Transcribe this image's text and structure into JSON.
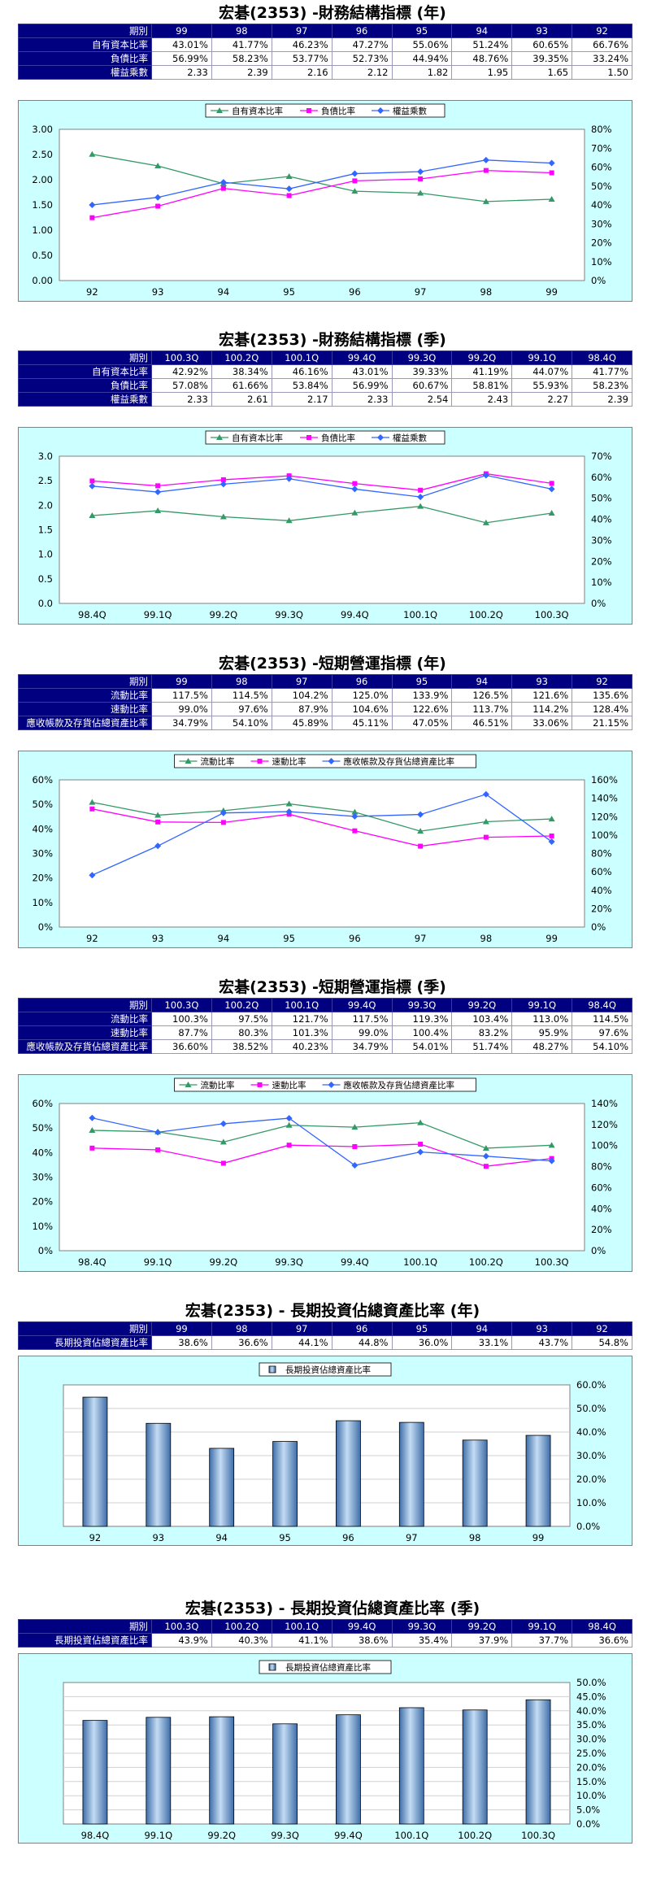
{
  "sections": [
    {
      "title": "宏碁(2353) -財務結構指標 (年)",
      "table": {
        "header_label": "期別",
        "columns": [
          "99",
          "98",
          "97",
          "96",
          "95",
          "94",
          "93",
          "92"
        ],
        "rows": [
          {
            "label": "自有資本比率",
            "values": [
              "43.01%",
              "41.77%",
              "46.23%",
              "47.27%",
              "55.06%",
              "51.24%",
              "60.65%",
              "66.76%"
            ]
          },
          {
            "label": "負債比率",
            "values": [
              "56.99%",
              "58.23%",
              "53.77%",
              "52.73%",
              "44.94%",
              "48.76%",
              "39.35%",
              "33.24%"
            ]
          },
          {
            "label": "權益乘數",
            "values": [
              "2.33",
              "2.39",
              "2.16",
              "2.12",
              "1.82",
              "1.95",
              "1.65",
              "1.50"
            ]
          }
        ]
      }
    },
    {
      "title": "宏碁(2353) -財務結構指標 (季)",
      "table": {
        "header_label": "期別",
        "columns": [
          "100.3Q",
          "100.2Q",
          "100.1Q",
          "99.4Q",
          "99.3Q",
          "99.2Q",
          "99.1Q",
          "98.4Q"
        ],
        "rows": [
          {
            "label": "自有資本比率",
            "values": [
              "42.92%",
              "38.34%",
              "46.16%",
              "43.01%",
              "39.33%",
              "41.19%",
              "44.07%",
              "41.77%"
            ]
          },
          {
            "label": "負債比率",
            "values": [
              "57.08%",
              "61.66%",
              "53.84%",
              "56.99%",
              "60.67%",
              "58.81%",
              "55.93%",
              "58.23%"
            ]
          },
          {
            "label": "權益乘數",
            "values": [
              "2.33",
              "2.61",
              "2.17",
              "2.33",
              "2.54",
              "2.43",
              "2.27",
              "2.39"
            ]
          }
        ]
      }
    },
    {
      "title": "宏碁(2353) -短期營運指標 (年)",
      "table": {
        "header_label": "期別",
        "columns": [
          "99",
          "98",
          "97",
          "96",
          "95",
          "94",
          "93",
          "92"
        ],
        "rows": [
          {
            "label": "流動比率",
            "values": [
              "117.5%",
              "114.5%",
              "104.2%",
              "125.0%",
              "133.9%",
              "126.5%",
              "121.6%",
              "135.6%"
            ]
          },
          {
            "label": "速動比率",
            "values": [
              "99.0%",
              "97.6%",
              "87.9%",
              "104.6%",
              "122.6%",
              "113.7%",
              "114.2%",
              "128.4%"
            ]
          },
          {
            "label": "應收帳款及存貨佔總資產比率",
            "values": [
              "34.79%",
              "54.10%",
              "45.89%",
              "45.11%",
              "47.05%",
              "46.51%",
              "33.06%",
              "21.15%"
            ]
          }
        ]
      }
    },
    {
      "title": "宏碁(2353) -短期營運指標 (季)",
      "table": {
        "header_label": "期別",
        "columns": [
          "100.3Q",
          "100.2Q",
          "100.1Q",
          "99.4Q",
          "99.3Q",
          "99.2Q",
          "99.1Q",
          "98.4Q"
        ],
        "rows": [
          {
            "label": "流動比率",
            "values": [
              "100.3%",
              "97.5%",
              "121.7%",
              "117.5%",
              "119.3%",
              "103.4%",
              "113.0%",
              "114.5%"
            ]
          },
          {
            "label": "速動比率",
            "values": [
              "87.7%",
              "80.3%",
              "101.3%",
              "99.0%",
              "100.4%",
              "83.2%",
              "95.9%",
              "97.6%"
            ]
          },
          {
            "label": "應收帳款及存貨佔總資產比率",
            "values": [
              "36.60%",
              "38.52%",
              "40.23%",
              "34.79%",
              "54.01%",
              "51.74%",
              "48.27%",
              "54.10%"
            ]
          }
        ]
      }
    },
    {
      "title": "宏碁(2353) - 長期投資佔總資產比率 (年)",
      "table": {
        "header_label": "期別",
        "columns": [
          "99",
          "98",
          "97",
          "96",
          "95",
          "94",
          "93",
          "92"
        ],
        "rows": [
          {
            "label": "長期投資佔總資產比率",
            "values": [
              "38.6%",
              "36.6%",
              "44.1%",
              "44.8%",
              "36.0%",
              "33.1%",
              "43.7%",
              "54.8%"
            ]
          }
        ]
      }
    },
    {
      "title": "宏碁(2353) - 長期投資佔總資產比率 (季)",
      "table": {
        "header_label": "期別",
        "columns": [
          "100.3Q",
          "100.2Q",
          "100.1Q",
          "99.4Q",
          "99.3Q",
          "99.2Q",
          "99.1Q",
          "98.4Q"
        ],
        "rows": [
          {
            "label": "長期投資佔總資產比率",
            "values": [
              "43.9%",
              "40.3%",
              "41.1%",
              "38.6%",
              "35.4%",
              "37.9%",
              "37.7%",
              "36.6%"
            ]
          }
        ]
      }
    }
  ],
  "chart_data": [
    {
      "type": "line",
      "categories": [
        "92",
        "93",
        "94",
        "95",
        "96",
        "97",
        "98",
        "99"
      ],
      "left_axis": {
        "min": 0,
        "max": 3.0,
        "step": 0.5,
        "format": "fixed2"
      },
      "right_axis": {
        "min": 0,
        "max": 80,
        "step": 10,
        "format": "pct0"
      },
      "legend_placement": "top-center",
      "series": [
        {
          "name": "自有資本比率",
          "axis": "right",
          "color": "#339966",
          "marker": "triangle",
          "values": [
            66.76,
            60.65,
            51.24,
            55.06,
            47.27,
            46.23,
            41.77,
            43.01
          ]
        },
        {
          "name": "負債比率",
          "axis": "right",
          "color": "#ff00ff",
          "marker": "square",
          "values": [
            33.24,
            39.35,
            48.76,
            44.94,
            52.73,
            53.77,
            58.23,
            56.99
          ]
        },
        {
          "name": "權益乘數",
          "axis": "left",
          "color": "#3366ff",
          "marker": "diamond",
          "values": [
            1.5,
            1.65,
            1.95,
            1.82,
            2.12,
            2.16,
            2.39,
            2.33
          ]
        }
      ]
    },
    {
      "type": "line",
      "categories": [
        "98.4Q",
        "99.1Q",
        "99.2Q",
        "99.3Q",
        "99.4Q",
        "100.1Q",
        "100.2Q",
        "100.3Q"
      ],
      "left_axis": {
        "min": 0,
        "max": 3.0,
        "step": 0.5,
        "format": "fixed1"
      },
      "right_axis": {
        "min": 0,
        "max": 70,
        "step": 10,
        "format": "pct0"
      },
      "legend_placement": "top-center",
      "series": [
        {
          "name": "自有資本比率",
          "axis": "right",
          "color": "#339966",
          "marker": "triangle",
          "values": [
            41.77,
            44.07,
            41.19,
            39.33,
            43.01,
            46.16,
            38.34,
            42.92
          ]
        },
        {
          "name": "負債比率",
          "axis": "right",
          "color": "#ff00ff",
          "marker": "square",
          "values": [
            58.23,
            55.93,
            58.81,
            60.67,
            56.99,
            53.84,
            61.66,
            57.08
          ]
        },
        {
          "name": "權益乘數",
          "axis": "left",
          "color": "#3366ff",
          "marker": "diamond",
          "values": [
            2.39,
            2.27,
            2.43,
            2.54,
            2.33,
            2.17,
            2.61,
            2.33
          ]
        }
      ]
    },
    {
      "type": "line",
      "categories": [
        "92",
        "93",
        "94",
        "95",
        "96",
        "97",
        "98",
        "99"
      ],
      "left_axis": {
        "min": 0,
        "max": 60,
        "step": 10,
        "format": "pct0"
      },
      "right_axis": {
        "min": 0,
        "max": 160,
        "step": 20,
        "format": "pct0"
      },
      "legend_placement": "top-center",
      "series": [
        {
          "name": "流動比率",
          "axis": "right",
          "color": "#339966",
          "marker": "triangle",
          "values": [
            135.6,
            121.6,
            126.5,
            133.9,
            125.0,
            104.2,
            114.5,
            117.5
          ]
        },
        {
          "name": "速動比率",
          "axis": "right",
          "color": "#ff00ff",
          "marker": "square",
          "values": [
            128.4,
            114.2,
            113.7,
            122.6,
            104.6,
            87.9,
            97.6,
            99.0
          ]
        },
        {
          "name": "應收帳款及存貨佔總資產比率",
          "axis": "left",
          "color": "#3366ff",
          "marker": "diamond",
          "values": [
            21.15,
            33.06,
            46.51,
            47.05,
            45.11,
            45.89,
            54.1,
            34.79
          ]
        }
      ]
    },
    {
      "type": "line",
      "categories": [
        "98.4Q",
        "99.1Q",
        "99.2Q",
        "99.3Q",
        "99.4Q",
        "100.1Q",
        "100.2Q",
        "100.3Q"
      ],
      "left_axis": {
        "min": 0,
        "max": 60,
        "step": 10,
        "format": "pct0"
      },
      "right_axis": {
        "min": 0,
        "max": 140,
        "step": 20,
        "format": "pct0"
      },
      "legend_placement": "top-center",
      "series": [
        {
          "name": "流動比率",
          "axis": "right",
          "color": "#339966",
          "marker": "triangle",
          "values": [
            114.5,
            113.0,
            103.4,
            119.3,
            117.5,
            121.7,
            97.5,
            100.3
          ]
        },
        {
          "name": "速動比率",
          "axis": "right",
          "color": "#ff00ff",
          "marker": "square",
          "values": [
            97.6,
            95.9,
            83.2,
            100.4,
            99.0,
            101.3,
            80.3,
            87.7
          ]
        },
        {
          "name": "應收帳款及存貨佔總資產比率",
          "axis": "left",
          "color": "#3366ff",
          "marker": "diamond",
          "values": [
            54.1,
            48.27,
            51.74,
            54.01,
            34.79,
            40.23,
            38.52,
            36.6
          ]
        }
      ]
    },
    {
      "type": "bar",
      "categories": [
        "92",
        "93",
        "94",
        "95",
        "96",
        "97",
        "98",
        "99"
      ],
      "right_axis": {
        "min": 0,
        "max": 60,
        "step": 10,
        "format": "pct1"
      },
      "legend_placement": "top-center",
      "series": [
        {
          "name": "長期投資佔總資產比率",
          "color": "#6699cc",
          "values": [
            54.8,
            43.7,
            33.1,
            36.0,
            44.8,
            44.1,
            36.6,
            38.6
          ]
        }
      ]
    },
    {
      "type": "bar",
      "categories": [
        "98.4Q",
        "99.1Q",
        "99.2Q",
        "99.3Q",
        "99.4Q",
        "100.1Q",
        "100.2Q",
        "100.3Q"
      ],
      "right_axis": {
        "min": 0,
        "max": 50,
        "step": 5,
        "format": "pct1"
      },
      "legend_placement": "top-center",
      "series": [
        {
          "name": "長期投資佔總資產比率",
          "color": "#6699cc",
          "values": [
            36.6,
            37.7,
            37.9,
            35.4,
            38.6,
            41.1,
            40.3,
            43.9
          ]
        }
      ]
    }
  ]
}
